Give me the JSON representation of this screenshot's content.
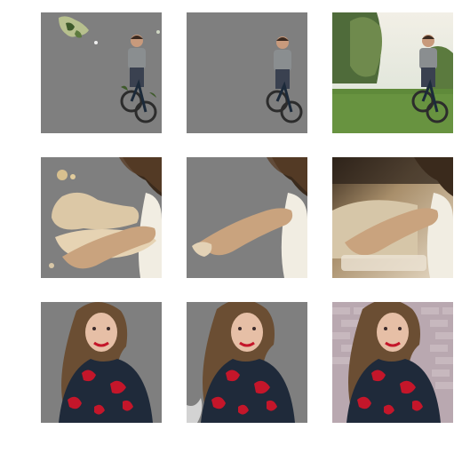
{
  "figure": {
    "rows": [
      {
        "name": "cyclist",
        "panels": [
          "masked-a",
          "masked-b",
          "original"
        ]
      },
      {
        "name": "blurry-arm",
        "panels": [
          "masked-a",
          "masked-b",
          "original"
        ]
      },
      {
        "name": "woman-floral-dress",
        "panels": [
          "masked-a",
          "masked-b",
          "original"
        ]
      }
    ],
    "colors": {
      "mask_gray": "#7f7f7f",
      "background": "#ffffff",
      "grass": "#5f8a3a",
      "sky": "#e7ece8",
      "dress_navy": "#1f2a3a",
      "dress_red": "#c4162a",
      "hair": "#6b4e33",
      "brick": "#b9a8b0"
    }
  }
}
